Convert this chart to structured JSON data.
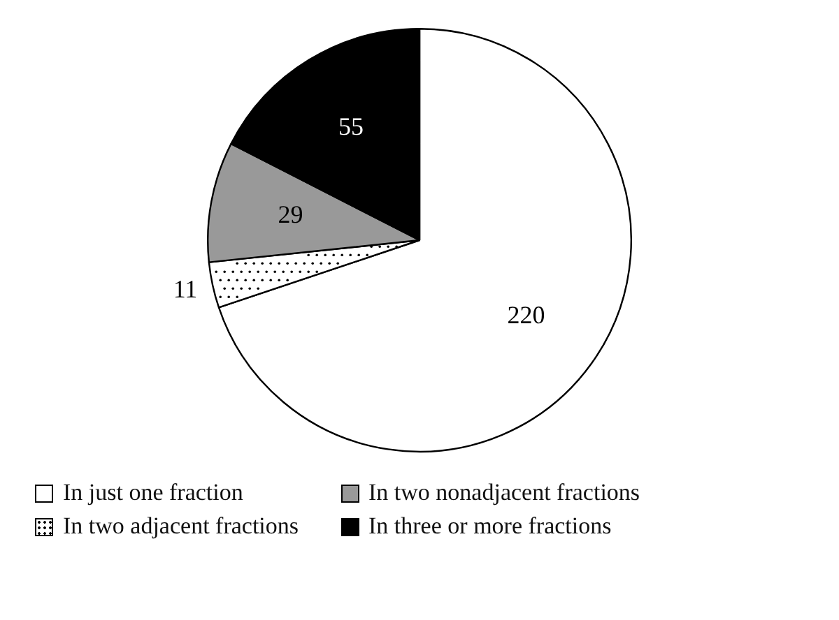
{
  "chart_data": {
    "type": "pie",
    "categories": [
      "In just one fraction",
      "In two adjacent fractions",
      "In two nonadjacent fractions",
      "In three or more fractions"
    ],
    "values": [
      220,
      11,
      29,
      55
    ],
    "colors": [
      "#ffffff",
      "#ffffff",
      "#999999",
      "#000000"
    ],
    "data_labels": true,
    "legend": "bottom"
  }
}
